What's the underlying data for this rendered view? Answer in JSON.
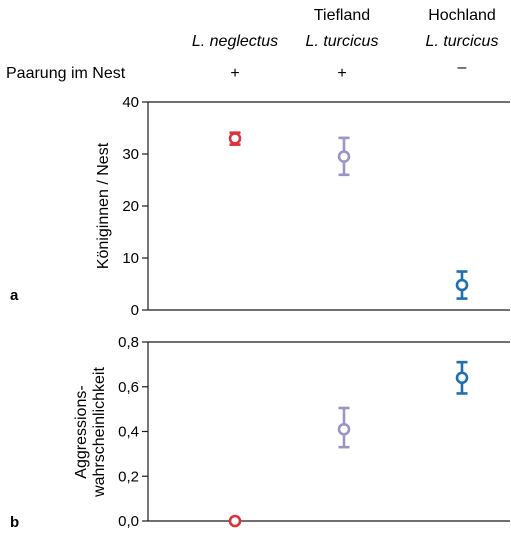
{
  "header": {
    "columns": [
      {
        "line1": "",
        "species": "L. neglectus",
        "mating": "+"
      },
      {
        "line1": "Tiefland",
        "species": "L. turcicus",
        "mating": "+"
      },
      {
        "line1": "Hochland",
        "species": "L. turcicus",
        "mating": "–"
      }
    ],
    "row_label": "Paarung im Nest"
  },
  "chart_data": [
    {
      "type": "scatter",
      "panel_label": "a",
      "ylabel": "Königinnen / Nest",
      "ylim": [
        0,
        40
      ],
      "yticks": [
        "0",
        "10",
        "20",
        "30",
        "40"
      ],
      "categories": [
        "L. neglectus",
        "Tiefland L. turcicus",
        "Hochland L. turcicus"
      ],
      "values": [
        33,
        29.5,
        4.8
      ],
      "err_low": [
        31.8,
        26,
        2.2
      ],
      "err_high": [
        34.1,
        33.1,
        7.4
      ],
      "colors": [
        "#e0303a",
        "#9d93c7",
        "#1e6fb0"
      ]
    },
    {
      "type": "scatter",
      "panel_label": "b",
      "ylabel_lines": [
        "Aggressions-",
        "wahrscheinlichkeit"
      ],
      "ylim": [
        0,
        0.8
      ],
      "yticks": [
        "0,0",
        "0,2",
        "0,4",
        "0,6",
        "0,8"
      ],
      "categories": [
        "L. neglectus",
        "Tiefland L. turcicus",
        "Hochland L. turcicus"
      ],
      "values": [
        0.0,
        0.41,
        0.64
      ],
      "err_low": [
        0.0,
        0.33,
        0.57
      ],
      "err_high": [
        0.0,
        0.505,
        0.71
      ],
      "colors": [
        "#e0303a",
        "#9d93c7",
        "#1e6fb0"
      ]
    }
  ]
}
